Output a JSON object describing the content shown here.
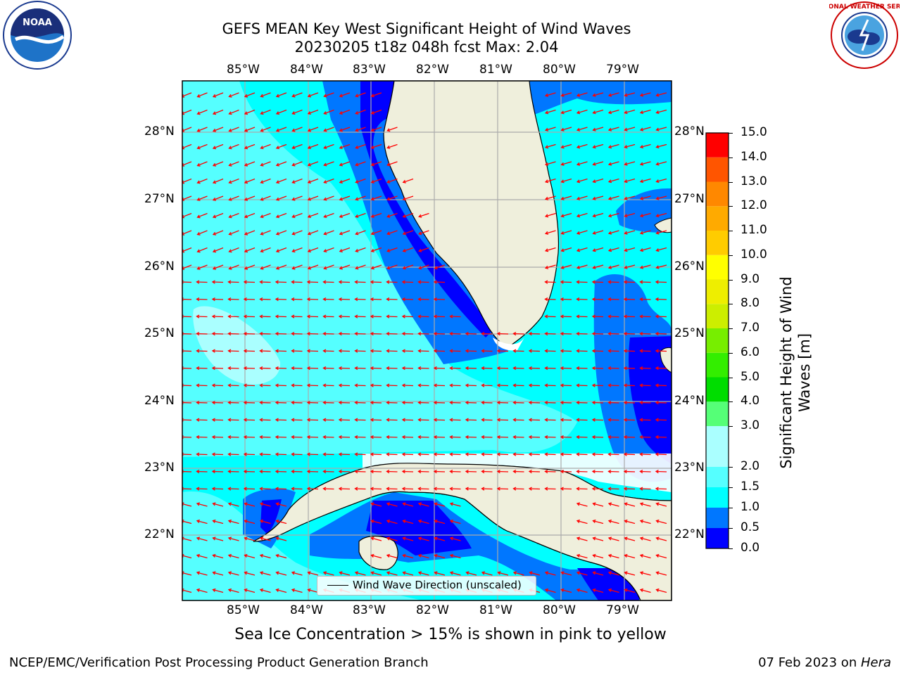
{
  "title": {
    "line1": "GEFS MEAN Key West Significant Height of Wind Waves",
    "line2": "20230205 t18z 048h fcst   Max: 2.04"
  },
  "map": {
    "lon_ticks": [
      "85°W",
      "84°W",
      "83°W",
      "82°W",
      "81°W",
      "80°W",
      "79°W"
    ],
    "lat_ticks": [
      "28°N",
      "27°N",
      "26°N",
      "25°N",
      "24°N",
      "23°N",
      "22°N"
    ],
    "colors": {
      "ocean_light": "#00ffff",
      "ocean_mid": "#55ffff",
      "ocean_pale": "#aaffff",
      "ocean_blue": "#0077ff",
      "ocean_deep": "#0000ff",
      "land": "#efefdc",
      "arrows": "#ff0000"
    },
    "legend_label": "Wind Wave Direction (unscaled)"
  },
  "colorbar": {
    "ticks": [
      "15.0",
      "14.0",
      "13.0",
      "12.0",
      "11.0",
      "10.0",
      "9.0",
      "8.0",
      "7.0",
      "6.0",
      "5.0",
      "4.0",
      "3.0",
      "2.0",
      "1.5",
      "1.0",
      "0.5",
      "0.0"
    ],
    "colors": [
      "#0000ff",
      "#0077ff",
      "#00ffff",
      "#55ffff",
      "#aaffff",
      "#55ff77",
      "#00dd00",
      "#33ee00",
      "#77ee00",
      "#aaee00",
      "#ccee00",
      "#eeee00",
      "#ffff00",
      "#ffcc00",
      "#ffaa00",
      "#ff8800",
      "#ff5500",
      "#ff2200",
      "#ff0000"
    ],
    "label_line1": "Significant Height of Wind",
    "label_line2": "Waves [m]"
  },
  "subcaption": "Sea Ice Concentration > 15% is shown in pink to yellow",
  "footer": {
    "left": "NCEP/EMC/Verification Post Processing Product Generation Branch",
    "right_date": "07 Feb 2023 on ",
    "right_host": "Hera"
  },
  "logos": {
    "noaa_text": "NOAA",
    "nws_text": "NATIONAL WEATHER SERVICE"
  }
}
